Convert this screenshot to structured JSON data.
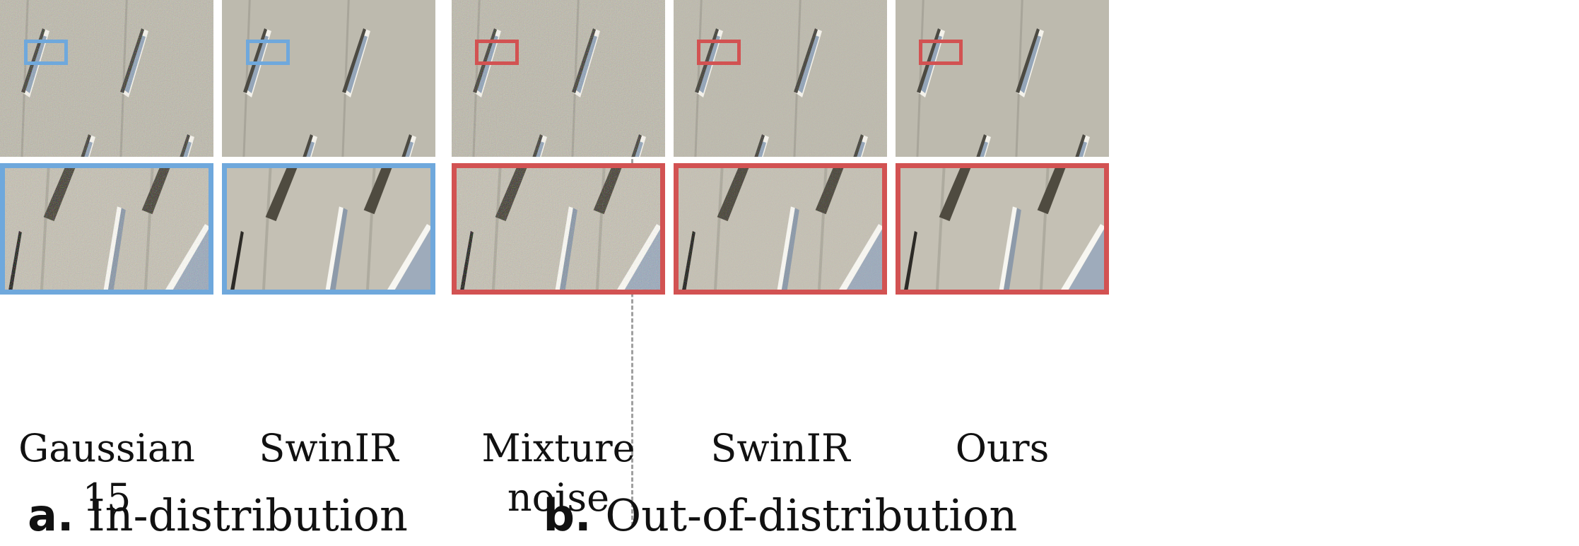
{
  "colors": {
    "in_distribution": "#6fa8dc",
    "out_of_distribution": "#d25252",
    "facade": "#b9b6ab",
    "window": "#9aa9bb"
  },
  "panels": [
    {
      "caption": "Gaussian 15",
      "group": "a",
      "noise": "heavy"
    },
    {
      "caption": "SwinIR",
      "group": "a",
      "noise": "none"
    },
    {
      "caption": "Mixture noise",
      "group": "b",
      "noise": "heavy"
    },
    {
      "caption": "SwinIR",
      "group": "b",
      "noise": "medium"
    },
    {
      "caption": "Ours",
      "group": "b",
      "noise": "none"
    }
  ],
  "sections": {
    "a": {
      "letter": "a.",
      "label": "In-distribution"
    },
    "b": {
      "letter": "b.",
      "label": "Out-of-distribution"
    }
  }
}
